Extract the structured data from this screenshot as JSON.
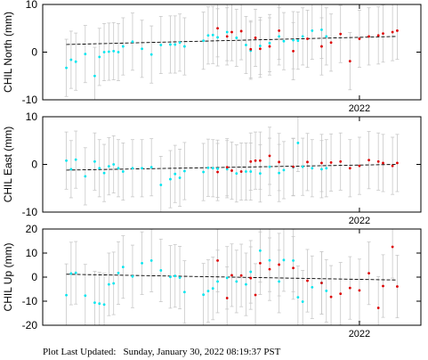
{
  "footer": {
    "label": "Plot Last Updated:",
    "value": "Sunday, January 30, 2022 08:19:37 PST"
  },
  "colors": {
    "early_points": "#00e5ee",
    "recent_points": "#dd0000",
    "error_bars": "#c8c8c8",
    "trend_line": "#000000"
  },
  "chart_data": [
    {
      "type": "scatter",
      "ylabel": "CHIL North (mm)",
      "xlabel": "",
      "ylim": [
        -10,
        10
      ],
      "yticks": [
        -10,
        0,
        10
      ],
      "x_tick_labels": [
        {
          "x": 2022.0,
          "label": "2022"
        }
      ],
      "trend": {
        "start": [
          2021.38,
          1.6
        ],
        "end": [
          2022.08,
          3.3
        ]
      },
      "series": [
        {
          "color_key": "early_points",
          "points": [
            [
              2021.38,
              -3.3
            ],
            [
              2021.39,
              -1.6
            ],
            [
              2021.4,
              -2.0
            ],
            [
              2021.42,
              -0.4
            ],
            [
              2021.44,
              -5.0
            ],
            [
              2021.45,
              -1.0
            ],
            [
              2021.46,
              0.0
            ],
            [
              2021.47,
              0.1
            ],
            [
              2021.48,
              0.2
            ],
            [
              2021.49,
              0.0
            ],
            [
              2021.5,
              1.2
            ],
            [
              2021.52,
              2.2
            ],
            [
              2021.54,
              0.7
            ],
            [
              2021.56,
              -0.5
            ],
            [
              2021.58,
              1.5
            ],
            [
              2021.6,
              1.6
            ],
            [
              2021.61,
              1.6
            ],
            [
              2021.62,
              2.0
            ],
            [
              2021.63,
              1.2
            ],
            [
              2021.67,
              2.4
            ],
            [
              2021.68,
              3.5
            ],
            [
              2021.69,
              3.6
            ],
            [
              2021.7,
              3.1
            ],
            [
              2021.72,
              4.2
            ],
            [
              2021.74,
              3.0
            ],
            [
              2021.76,
              1.5
            ],
            [
              2021.77,
              0.3
            ],
            [
              2021.79,
              1.3
            ],
            [
              2021.81,
              1.9
            ],
            [
              2021.83,
              3.3
            ],
            [
              2021.84,
              2.3
            ],
            [
              2021.86,
              2.5
            ],
            [
              2021.87,
              2.4
            ],
            [
              2021.88,
              3.3
            ],
            [
              2021.9,
              4.5
            ],
            [
              2021.92,
              4.7
            ],
            [
              2021.93,
              3.3
            ]
          ]
        },
        {
          "color_key": "recent_points",
          "points": [
            [
              2021.7,
              5.0
            ],
            [
              2021.72,
              3.3
            ],
            [
              2021.73,
              4.2
            ],
            [
              2021.75,
              4.4
            ],
            [
              2021.77,
              0.6
            ],
            [
              2021.78,
              3.0
            ],
            [
              2021.79,
              0.7
            ],
            [
              2021.81,
              1.2
            ],
            [
              2021.83,
              4.5
            ],
            [
              2021.86,
              0.2
            ],
            [
              2021.89,
              2.8
            ],
            [
              2021.92,
              1.2
            ],
            [
              2021.94,
              2.0
            ],
            [
              2021.96,
              3.8
            ],
            [
              2021.98,
              -1.9
            ],
            [
              2022.0,
              2.8
            ],
            [
              2022.02,
              3.3
            ],
            [
              2022.04,
              3.5
            ],
            [
              2022.05,
              3.9
            ],
            [
              2022.07,
              4.2
            ],
            [
              2022.08,
              4.5
            ]
          ]
        }
      ]
    },
    {
      "type": "scatter",
      "ylabel": "CHIL East (mm)",
      "xlabel": "",
      "ylim": [
        -10,
        10
      ],
      "yticks": [
        -10,
        0,
        10
      ],
      "x_tick_labels": [
        {
          "x": 2022.0,
          "label": "2022"
        }
      ],
      "trend": {
        "start": [
          2021.38,
          -1.2
        ],
        "end": [
          2022.08,
          0.0
        ]
      },
      "series": [
        {
          "color_key": "early_points",
          "points": [
            [
              2021.38,
              0.8
            ],
            [
              2021.39,
              -1.0
            ],
            [
              2021.4,
              1.0
            ],
            [
              2021.42,
              -2.5
            ],
            [
              2021.44,
              0.6
            ],
            [
              2021.45,
              -0.8
            ],
            [
              2021.46,
              -1.8
            ],
            [
              2021.47,
              -0.4
            ],
            [
              2021.48,
              0.0
            ],
            [
              2021.49,
              -0.8
            ],
            [
              2021.5,
              -1.5
            ],
            [
              2021.52,
              -0.8
            ],
            [
              2021.54,
              -0.8
            ],
            [
              2021.56,
              -0.6
            ],
            [
              2021.58,
              -4.3
            ],
            [
              2021.6,
              -3.1
            ],
            [
              2021.61,
              -2.0
            ],
            [
              2021.62,
              -2.8
            ],
            [
              2021.63,
              -1.4
            ],
            [
              2021.67,
              -1.6
            ],
            [
              2021.68,
              -0.7
            ],
            [
              2021.69,
              -0.8
            ],
            [
              2021.7,
              -0.9
            ],
            [
              2021.72,
              -1.0
            ],
            [
              2021.74,
              -1.9
            ],
            [
              2021.76,
              -1.5
            ],
            [
              2021.77,
              -1.5
            ],
            [
              2021.79,
              -1.9
            ],
            [
              2021.81,
              -0.5
            ],
            [
              2021.83,
              -1.8
            ],
            [
              2021.84,
              -1.2
            ],
            [
              2021.86,
              -0.6
            ],
            [
              2021.87,
              4.5
            ],
            [
              2021.88,
              -0.5
            ],
            [
              2021.9,
              -0.8
            ],
            [
              2021.92,
              -1.0
            ],
            [
              2021.93,
              -0.8
            ]
          ]
        },
        {
          "color_key": "recent_points",
          "points": [
            [
              2021.7,
              -1.6
            ],
            [
              2021.72,
              -0.6
            ],
            [
              2021.73,
              -1.3
            ],
            [
              2021.75,
              -1.5
            ],
            [
              2021.77,
              0.6
            ],
            [
              2021.78,
              0.8
            ],
            [
              2021.79,
              0.8
            ],
            [
              2021.81,
              1.8
            ],
            [
              2021.83,
              0.5
            ],
            [
              2021.86,
              -0.5
            ],
            [
              2021.89,
              0.5
            ],
            [
              2021.92,
              0.3
            ],
            [
              2021.94,
              0.4
            ],
            [
              2021.96,
              0.6
            ],
            [
              2021.98,
              -0.8
            ],
            [
              2022.0,
              -0.3
            ],
            [
              2022.02,
              0.9
            ],
            [
              2022.04,
              0.6
            ],
            [
              2022.05,
              0.3
            ],
            [
              2022.07,
              -0.3
            ],
            [
              2022.08,
              0.3
            ]
          ]
        }
      ]
    },
    {
      "type": "scatter",
      "ylabel": "CHIL Up (mm)",
      "xlabel": "",
      "ylim": [
        -20,
        20
      ],
      "yticks": [
        -20,
        -10,
        0,
        10,
        20
      ],
      "x_tick_labels": [
        {
          "x": 2022.0,
          "label": "2022"
        }
      ],
      "trend": {
        "start": [
          2021.38,
          1.2
        ],
        "end": [
          2022.08,
          -1.2
        ]
      },
      "series": [
        {
          "color_key": "early_points",
          "points": [
            [
              2021.38,
              -7.5
            ],
            [
              2021.39,
              1.5
            ],
            [
              2021.4,
              1.8
            ],
            [
              2021.42,
              -7.7
            ],
            [
              2021.44,
              -10.6
            ],
            [
              2021.45,
              -11.0
            ],
            [
              2021.46,
              -11.4
            ],
            [
              2021.47,
              -3.0
            ],
            [
              2021.48,
              -2.6
            ],
            [
              2021.49,
              1.7
            ],
            [
              2021.5,
              4.2
            ],
            [
              2021.52,
              0.3
            ],
            [
              2021.54,
              5.8
            ],
            [
              2021.56,
              6.9
            ],
            [
              2021.58,
              2.8
            ],
            [
              2021.6,
              0.1
            ],
            [
              2021.61,
              0.5
            ],
            [
              2021.62,
              -0.2
            ],
            [
              2021.63,
              -6.2
            ],
            [
              2021.67,
              -7.3
            ],
            [
              2021.68,
              -5.8
            ],
            [
              2021.69,
              -4.7
            ],
            [
              2021.7,
              -1.8
            ],
            [
              2021.72,
              -0.3
            ],
            [
              2021.74,
              -1.8
            ],
            [
              2021.76,
              -3.0
            ],
            [
              2021.77,
              2.2
            ],
            [
              2021.79,
              11.0
            ],
            [
              2021.81,
              7.0
            ],
            [
              2021.83,
              -1.8
            ],
            [
              2021.84,
              7.1
            ],
            [
              2021.86,
              6.9
            ],
            [
              2021.87,
              -8.4
            ],
            [
              2021.88,
              -10.2
            ],
            [
              2021.9,
              -4.2
            ],
            [
              2021.92,
              -2.4
            ],
            [
              2021.93,
              -5.7
            ]
          ]
        },
        {
          "color_key": "recent_points",
          "points": [
            [
              2021.7,
              6.9
            ],
            [
              2021.72,
              -8.7
            ],
            [
              2021.73,
              0.8
            ],
            [
              2021.75,
              0.7
            ],
            [
              2021.77,
              -0.4
            ],
            [
              2021.78,
              -7.4
            ],
            [
              2021.79,
              5.8
            ],
            [
              2021.81,
              3.3
            ],
            [
              2021.83,
              5.2
            ],
            [
              2021.86,
              3.8
            ],
            [
              2021.89,
              -1.5
            ],
            [
              2021.92,
              -2.4
            ],
            [
              2021.94,
              -8.2
            ],
            [
              2021.96,
              -6.9
            ],
            [
              2021.98,
              -4.5
            ],
            [
              2022.0,
              -5.5
            ],
            [
              2022.02,
              1.6
            ],
            [
              2022.04,
              -12.8
            ],
            [
              2022.05,
              -3.7
            ],
            [
              2022.07,
              12.6
            ],
            [
              2022.08,
              -3.9
            ]
          ]
        }
      ]
    }
  ]
}
